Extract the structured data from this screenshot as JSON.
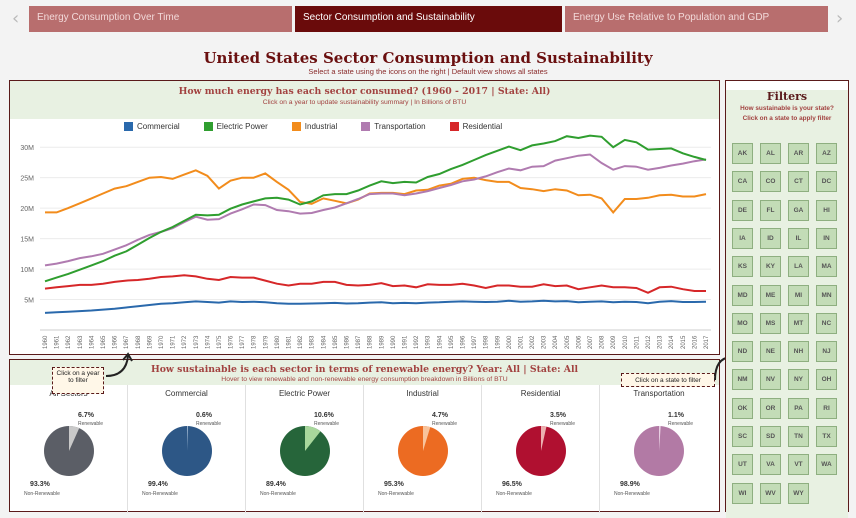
{
  "nav": {
    "prev_icon": "‹",
    "next_icon": "›",
    "tabs": [
      "Energy Consumption Over Time",
      "Sector Consumption and Sustainability",
      "Energy Use Relative to Population and GDP"
    ]
  },
  "page": {
    "title": "United States Sector Consumption and Sustainability",
    "subtitle": "Select a state using the icons on the right | Default view shows all states"
  },
  "line_panel": {
    "title": "How much energy has each sector consumed? (1960 - 2017 | State: All)",
    "subtitle": "Click on a year to update sustainability summary | In Billions of BTU"
  },
  "pie_panel": {
    "title": "How sustainable is each sector in terms of renewable energy? Year: All | State: All",
    "subtitle": "Hover to view renewable and non-renewable energy consumption breakdown in Billions of BTU"
  },
  "callouts": {
    "year": "Click on a year to filter",
    "state": "Click on a state to filter"
  },
  "colors": {
    "Commercial": "#2a69ac",
    "Electric Power": "#2f9e2f",
    "Industrial": "#f28c1c",
    "Transportation": "#b07bb0",
    "Residential": "#d62729"
  },
  "chart_data": {
    "type": "line",
    "x": [
      1960,
      1961,
      1962,
      1963,
      1964,
      1965,
      1966,
      1967,
      1968,
      1969,
      1970,
      1971,
      1972,
      1973,
      1974,
      1975,
      1976,
      1977,
      1978,
      1979,
      1980,
      1981,
      1982,
      1983,
      1984,
      1985,
      1986,
      1987,
      1988,
      1989,
      1990,
      1991,
      1992,
      1993,
      1994,
      1995,
      1996,
      1997,
      1998,
      1999,
      2000,
      2001,
      2002,
      2003,
      2004,
      2005,
      2006,
      2007,
      2008,
      2009,
      2010,
      2011,
      2012,
      2013,
      2014,
      2015,
      2016,
      2017
    ],
    "yticks": [
      "5M",
      "10M",
      "15M",
      "20M",
      "25M",
      "30M"
    ],
    "ylim": [
      0,
      32000000
    ],
    "series": [
      {
        "name": "Commercial",
        "values": [
          2800000,
          2900000,
          3000000,
          3100000,
          3200000,
          3350000,
          3500000,
          3700000,
          3900000,
          4100000,
          4300000,
          4400000,
          4550000,
          4700000,
          4600000,
          4500000,
          4700000,
          4600000,
          4650000,
          4550000,
          4400000,
          4300000,
          4300000,
          4350000,
          4400000,
          4450000,
          4350000,
          4400000,
          4500000,
          4550000,
          4400000,
          4450000,
          4400000,
          4500000,
          4550000,
          4650000,
          4700000,
          4650000,
          4600000,
          4650000,
          4800000,
          4650000,
          4700000,
          4800000,
          4700000,
          4750000,
          4550000,
          4650000,
          4700000,
          4550000,
          4650000,
          4600000,
          4400000,
          4650000,
          4750000,
          4600000,
          4600000,
          4650000
        ]
      },
      {
        "name": "Electric Power",
        "values": [
          8000000,
          8600000,
          9200000,
          9900000,
          10600000,
          11300000,
          12200000,
          12900000,
          14000000,
          15100000,
          16100000,
          16900000,
          17900000,
          18900000,
          18800000,
          18900000,
          19900000,
          20600000,
          21100000,
          21600000,
          21700000,
          21400000,
          20600000,
          21100000,
          22100000,
          22300000,
          22300000,
          22900000,
          23700000,
          24400000,
          24100000,
          24300000,
          24200000,
          25100000,
          25600000,
          26400000,
          27100000,
          27900000,
          28700000,
          29400000,
          30100000,
          29500000,
          30300000,
          30600000,
          31000000,
          31800000,
          31500000,
          31900000,
          31700000,
          30000000,
          31200000,
          30800000,
          29600000,
          29700000,
          29800000,
          29000000,
          28400000,
          27900000
        ]
      },
      {
        "name": "Industrial",
        "values": [
          19300000,
          19300000,
          20000000,
          20800000,
          21600000,
          22400000,
          23200000,
          23600000,
          24300000,
          25000000,
          25100000,
          24800000,
          25500000,
          26200000,
          25300000,
          23200000,
          24500000,
          25000000,
          25000000,
          25700000,
          24300000,
          23000000,
          21000000,
          20700000,
          21600000,
          21200000,
          20800000,
          21400000,
          22400000,
          22500000,
          22500000,
          22300000,
          22900000,
          23000000,
          23700000,
          24000000,
          24800000,
          25000000,
          24600000,
          24300000,
          24300000,
          23300000,
          23100000,
          22800000,
          23100000,
          22900000,
          22100000,
          22200000,
          21600000,
          19300000,
          21500000,
          21500000,
          21700000,
          22100000,
          22200000,
          21900000,
          21900000,
          22300000
        ]
      },
      {
        "name": "Transportation",
        "values": [
          10600000,
          10900000,
          11300000,
          11800000,
          12100000,
          12500000,
          13200000,
          13900000,
          14800000,
          15600000,
          16100000,
          16700000,
          17700000,
          18600000,
          18100000,
          18200000,
          19100000,
          19800000,
          20600000,
          20500000,
          19700000,
          19500000,
          19100000,
          19200000,
          19700000,
          20100000,
          20800000,
          21500000,
          22300000,
          22400000,
          22400000,
          22100000,
          22400000,
          22800000,
          23300000,
          23800000,
          24400000,
          24700000,
          25200000,
          25900000,
          26500000,
          26200000,
          26800000,
          26900000,
          27800000,
          28200000,
          28600000,
          28800000,
          27400000,
          26300000,
          26900000,
          26800000,
          26300000,
          26600000,
          27000000,
          27300000,
          27700000,
          28000000
        ]
      },
      {
        "name": "Residential",
        "values": [
          6800000,
          7000000,
          7200000,
          7400000,
          7400000,
          7600000,
          7900000,
          8100000,
          8200000,
          8400000,
          8700000,
          8800000,
          9000000,
          8800000,
          8400000,
          8200000,
          8700000,
          8600000,
          8600000,
          8100000,
          7600000,
          7300000,
          7600000,
          7600000,
          7900000,
          7900000,
          7400000,
          7300000,
          7400000,
          7700000,
          7200000,
          7300000,
          7000000,
          7500000,
          7400000,
          7400000,
          7600000,
          7300000,
          6900000,
          7300000,
          7300000,
          7100000,
          7100000,
          7500000,
          7200000,
          7300000,
          6700000,
          7000000,
          7300000,
          7000000,
          7000000,
          6900000,
          6100000,
          7000000,
          7100000,
          6700000,
          6400000,
          6400000
        ]
      }
    ]
  },
  "pies": [
    {
      "name": "All Sectors",
      "renewable": "6.7%",
      "nonrenewable": "93.3%",
      "renewable_label": "Renewable",
      "nonrenewable_label": "Non-Renewable",
      "renewable_frac": 0.067,
      "color": "#5b5e66",
      "light": "#c9c9c9"
    },
    {
      "name": "Commercial",
      "renewable": "0.6%",
      "nonrenewable": "99.4%",
      "renewable_label": "Renewable",
      "nonrenewable_label": "Non-Renewable",
      "renewable_frac": 0.006,
      "color": "#2d5786",
      "light": "#a8bfd8"
    },
    {
      "name": "Electric Power",
      "renewable": "10.6%",
      "nonrenewable": "89.4%",
      "renewable_label": "Renewable",
      "nonrenewable_label": "Non-Renewable",
      "renewable_frac": 0.106,
      "color": "#26653a",
      "light": "#a8d79c"
    },
    {
      "name": "Industrial",
      "renewable": "4.7%",
      "nonrenewable": "95.3%",
      "renewable_label": "Renewable",
      "nonrenewable_label": "Non-Renewable",
      "renewable_frac": 0.047,
      "color": "#ec6b22",
      "light": "#f8c39c"
    },
    {
      "name": "Residential",
      "renewable": "3.5%",
      "nonrenewable": "96.5%",
      "renewable_label": "Renewable",
      "nonrenewable_label": "Non-Renewable",
      "renewable_frac": 0.035,
      "color": "#b01030",
      "light": "#ecb0b0"
    },
    {
      "name": "Transportation",
      "renewable": "1.1%",
      "nonrenewable": "98.9%",
      "renewable_label": "Renewable",
      "nonrenewable_label": "Non-Renewable",
      "renewable_frac": 0.011,
      "color": "#b27aa5",
      "light": "#e8cfe2"
    }
  ],
  "filters": {
    "title": "Filters",
    "subtitle1": "How sustainable is your state?",
    "subtitle2": "Click on a state to apply filter",
    "states": [
      [
        "AK",
        "AL",
        "AR",
        "AZ"
      ],
      [
        "CA",
        "CO",
        "CT",
        "DC"
      ],
      [
        "DE",
        "FL",
        "GA",
        "HI"
      ],
      [
        "IA",
        "ID",
        "IL",
        "IN"
      ],
      [
        "KS",
        "KY",
        "LA",
        "MA"
      ],
      [
        "MD",
        "ME",
        "MI",
        "MN"
      ],
      [
        "MO",
        "MS",
        "MT",
        "NC"
      ],
      [
        "ND",
        "NE",
        "NH",
        "NJ"
      ],
      [
        "NM",
        "NV",
        "NY",
        "OH"
      ],
      [
        "OK",
        "OR",
        "PA",
        "RI"
      ],
      [
        "SC",
        "SD",
        "TN",
        "TX"
      ],
      [
        "UT",
        "VA",
        "VT",
        "WA"
      ],
      [
        "WI",
        "WV",
        "WY"
      ]
    ]
  }
}
